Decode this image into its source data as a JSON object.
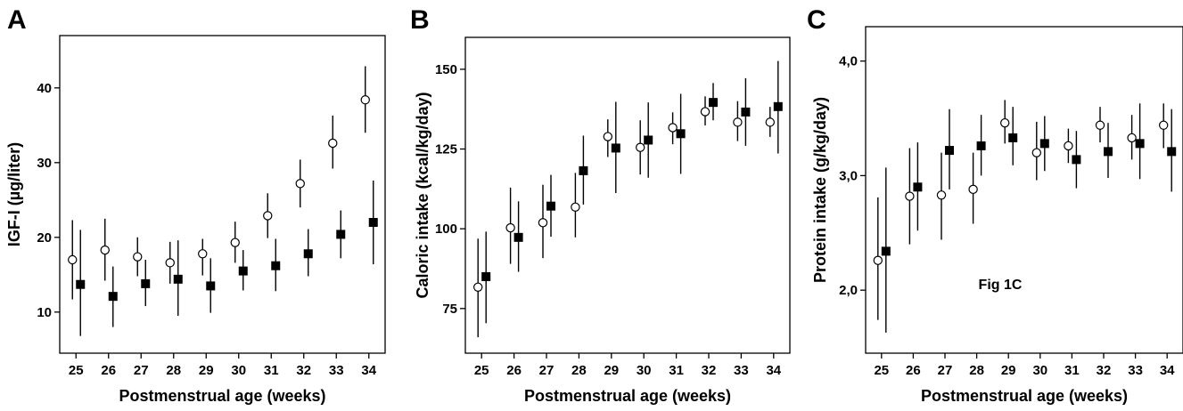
{
  "chart_data": [
    {
      "type": "scatter",
      "panel_label": "A",
      "xlabel": "Postmenstrual age (weeks)",
      "ylabel": "IGF-I (µg/liter)",
      "x": [
        25,
        26,
        27,
        28,
        29,
        30,
        31,
        32,
        33,
        34
      ],
      "xlim": [
        24.5,
        34.5
      ],
      "ylim": [
        4.5,
        47
      ],
      "yticks": [
        10,
        20,
        30,
        40
      ],
      "ytick_labels": [
        "10",
        "20",
        "30",
        "40"
      ],
      "series": [
        {
          "marker": "open-circle",
          "mean": [
            17,
            18.3,
            17.4,
            16.6,
            17.8,
            19.3,
            22.9,
            27.2,
            32.6,
            38.4
          ],
          "lower": [
            11.7,
            14.2,
            14.8,
            13.8,
            14.9,
            16.6,
            19.9,
            24.0,
            29.2,
            34.0
          ],
          "upper": [
            22.3,
            22.5,
            20.0,
            19.4,
            19.8,
            22.1,
            25.9,
            30.4,
            36.3,
            42.9
          ]
        },
        {
          "marker": "filled-square",
          "mean": [
            13.7,
            12.1,
            13.8,
            14.4,
            13.5,
            15.5,
            16.2,
            17.8,
            20.4,
            22.0
          ],
          "lower": [
            6.8,
            8.0,
            10.8,
            9.5,
            9.9,
            12.9,
            12.8,
            14.8,
            17.2,
            16.4
          ],
          "upper": [
            21.0,
            16.1,
            17.0,
            19.6,
            17.2,
            18.3,
            19.8,
            21.1,
            23.6,
            27.6
          ]
        }
      ]
    },
    {
      "type": "scatter",
      "panel_label": "B",
      "xlabel": "Postmenstrual age (weeks)",
      "ylabel": "Caloric intake (kcal/kg/day)",
      "x": [
        25,
        26,
        27,
        28,
        29,
        30,
        31,
        32,
        33,
        34
      ],
      "xlim": [
        24.5,
        34.5
      ],
      "ylim": [
        61,
        160
      ],
      "yticks": [
        75,
        100,
        125,
        150
      ],
      "ytick_labels": [
        "75",
        "100",
        "125",
        "150"
      ],
      "series": [
        {
          "marker": "open-circle",
          "mean": [
            81.7,
            100.3,
            101.9,
            106.8,
            128.9,
            125.5,
            131.7,
            136.7,
            133.4,
            133.4
          ],
          "lower": [
            66.0,
            89.0,
            90.8,
            97.3,
            122.5,
            117.0,
            126.5,
            132.4,
            127.5,
            128.8
          ],
          "upper": [
            96.9,
            112.9,
            113.8,
            117.5,
            134.3,
            134.0,
            136.5,
            141.5,
            140.0,
            138.2
          ]
        },
        {
          "marker": "filled-square",
          "mean": [
            85.0,
            97.3,
            107.1,
            118.2,
            125.3,
            127.8,
            129.8,
            139.6,
            136.6,
            138.3
          ],
          "lower": [
            70.4,
            86.5,
            97.5,
            107.6,
            111.2,
            116.0,
            117.2,
            134.0,
            126.0,
            123.6
          ],
          "upper": [
            99.1,
            108.6,
            116.9,
            129.2,
            139.8,
            139.6,
            142.3,
            145.7,
            147.2,
            152.6
          ]
        }
      ]
    },
    {
      "type": "scatter",
      "panel_label": "C",
      "xlabel": "Postmenstrual age (weeks)",
      "ylabel": "Protein intake (g/kg/day)",
      "annotation": "Fig 1C",
      "x": [
        25,
        26,
        27,
        28,
        29,
        30,
        31,
        32,
        33,
        34
      ],
      "xlim": [
        24.5,
        34.5
      ],
      "ylim": [
        1.45,
        4.3
      ],
      "yticks": [
        2.0,
        3.0,
        4.0
      ],
      "ytick_labels": [
        "2,0",
        "3,0",
        "4,0"
      ],
      "series": [
        {
          "marker": "open-circle",
          "mean": [
            2.26,
            2.82,
            2.83,
            2.88,
            3.46,
            3.2,
            3.26,
            3.44,
            3.33,
            3.44
          ],
          "lower": [
            1.74,
            2.4,
            2.44,
            2.58,
            3.28,
            2.96,
            3.11,
            3.29,
            3.14,
            3.24
          ],
          "upper": [
            2.81,
            3.24,
            3.2,
            3.2,
            3.66,
            3.47,
            3.41,
            3.6,
            3.53,
            3.63
          ]
        },
        {
          "marker": "filled-square",
          "mean": [
            2.34,
            2.9,
            3.22,
            3.26,
            3.33,
            3.28,
            3.14,
            3.21,
            3.28,
            3.21
          ],
          "lower": [
            1.63,
            2.52,
            2.88,
            3.0,
            3.09,
            3.04,
            2.89,
            2.98,
            2.97,
            2.86
          ],
          "upper": [
            3.07,
            3.29,
            3.58,
            3.53,
            3.6,
            3.52,
            3.39,
            3.46,
            3.63,
            3.58
          ]
        }
      ]
    }
  ]
}
